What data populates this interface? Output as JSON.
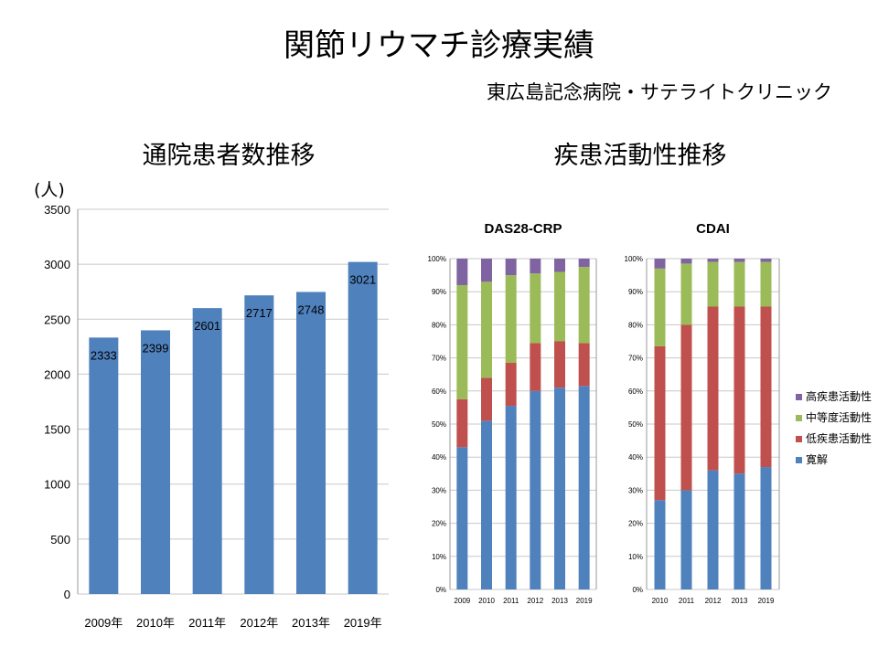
{
  "page": {
    "title": "関節リウマチ診療実績",
    "subtitle": "東広島記念病院・サテライトクリニック",
    "left_heading": "通院患者数推移",
    "right_heading": "疾患活動性推移"
  },
  "colors": {
    "bar": "#4f81bd",
    "remission": "#4f81bd",
    "low": "#c0504d",
    "moderate": "#9bbb59",
    "high": "#8064a2",
    "grid": "#c8c8c8"
  },
  "chart_data": [
    {
      "type": "bar",
      "title": "",
      "xlabel": "",
      "ylabel": "(人)",
      "categories": [
        "2009年",
        "2010年",
        "2011年",
        "2012年",
        "2013年",
        "2019年"
      ],
      "values": [
        2333,
        2399,
        2601,
        2717,
        2748,
        3021
      ],
      "ylim": [
        0,
        3500
      ],
      "yticks": [
        0,
        500,
        1000,
        1500,
        2000,
        2500,
        3000,
        3500
      ],
      "data_labels": true,
      "grid": true
    },
    {
      "type": "bar",
      "stacked": "percent",
      "title": "DAS28-CRP",
      "categories": [
        "2009",
        "2010",
        "2011",
        "2012",
        "2013",
        "2019"
      ],
      "series": [
        {
          "name": "寛解",
          "values": [
            43,
            51,
            55.5,
            60,
            61,
            61.5
          ]
        },
        {
          "name": "低疾患活動性",
          "values": [
            14.5,
            13,
            13,
            14.5,
            14,
            13
          ]
        },
        {
          "name": "中等度活動性",
          "values": [
            34.5,
            29,
            26.5,
            21,
            21,
            23
          ]
        },
        {
          "name": "高疾患活動性",
          "values": [
            8,
            7,
            5,
            4.5,
            4,
            2.5
          ]
        }
      ],
      "yticks": [
        "0%",
        "10%",
        "20%",
        "30%",
        "40%",
        "50%",
        "60%",
        "70%",
        "80%",
        "90%",
        "100%"
      ],
      "ylim": [
        0,
        100
      ],
      "grid": true
    },
    {
      "type": "bar",
      "stacked": "percent",
      "title": "CDAI",
      "categories": [
        "2010",
        "2011",
        "2012",
        "2013",
        "2019"
      ],
      "series": [
        {
          "name": "寛解",
          "values": [
            27,
            30,
            36,
            35,
            37
          ]
        },
        {
          "name": "低疾患活動性",
          "values": [
            46.5,
            50,
            49.5,
            50.5,
            48.5
          ]
        },
        {
          "name": "中等度活動性",
          "values": [
            23.5,
            18.5,
            13.5,
            13.5,
            13.5
          ]
        },
        {
          "name": "高疾患活動性",
          "values": [
            3,
            1.5,
            1,
            1,
            1
          ]
        }
      ],
      "yticks": [
        "0%",
        "10%",
        "20%",
        "30%",
        "40%",
        "50%",
        "60%",
        "70%",
        "80%",
        "90%",
        "100%"
      ],
      "ylim": [
        0,
        100
      ],
      "grid": true,
      "legend": {
        "position": "right",
        "items": [
          "高疾患活動性",
          "中等度活動性",
          "低疾患活動性",
          "寛解"
        ]
      }
    }
  ]
}
